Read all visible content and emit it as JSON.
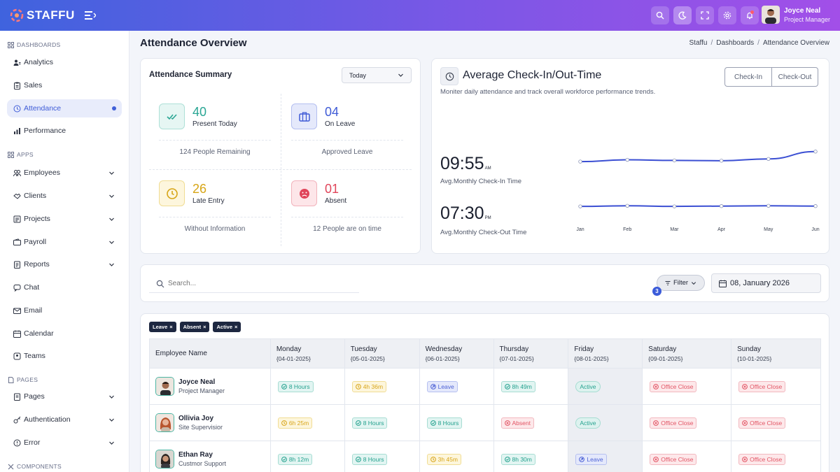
{
  "brand": {
    "name": "STAFFU"
  },
  "user": {
    "name": "Joyce Neal",
    "role": "Project Manager"
  },
  "sidebar": {
    "sections": [
      {
        "title": "DASHBOARDS"
      },
      {
        "title": "APPS"
      },
      {
        "title": "PAGES"
      },
      {
        "title": "COMPONENTS"
      }
    ],
    "items": [
      {
        "label": "Analytics"
      },
      {
        "label": "Sales"
      },
      {
        "label": "Attendance"
      },
      {
        "label": "Performance"
      },
      {
        "label": "Employees"
      },
      {
        "label": "Clients"
      },
      {
        "label": "Projects"
      },
      {
        "label": "Payroll"
      },
      {
        "label": "Reports"
      },
      {
        "label": "Chat"
      },
      {
        "label": "Email"
      },
      {
        "label": "Calendar"
      },
      {
        "label": "Teams"
      },
      {
        "label": "Pages"
      },
      {
        "label": "Authentication"
      },
      {
        "label": "Error"
      }
    ]
  },
  "header": {
    "title": "Attendance Overview",
    "breadcrumb": [
      "Staffu",
      "Dashboards",
      "Attendance Overview"
    ]
  },
  "summary": {
    "title": "Attendance Summary",
    "period": "Today",
    "stats": [
      {
        "value": "40",
        "label": "Present Today",
        "foot": "124 People Remaining",
        "color": "#2aa694"
      },
      {
        "value": "04",
        "label": "On Leave",
        "foot": "Approved Leave",
        "color": "#3f5bd6"
      },
      {
        "value": "26",
        "label": "Late Entry",
        "foot": "Without Information",
        "color": "#d7a516"
      },
      {
        "value": "01",
        "label": "Absent",
        "foot": "12 People are on time",
        "color": "#e0455a"
      }
    ]
  },
  "checkin": {
    "title": "Average Check-In/Out-Time",
    "subtitle": "Moniter daily attendance and track overall workforce performance trends.",
    "tabs": [
      "Check-In",
      "Check-Out"
    ],
    "checkin_time": "09:55",
    "checkin_suffix": "AM",
    "checkin_label": "Avg.Monthly Check-In Time",
    "checkout_time": "07:30",
    "checkout_suffix": "PM",
    "checkout_label": "Avg.Monthly Check-Out Time"
  },
  "chart_data": {
    "type": "line",
    "categories": [
      "Jan",
      "Feb",
      "Mar",
      "Apr",
      "May",
      "Jun"
    ],
    "series": [
      {
        "values": [
          9.6,
          9.9,
          9.8,
          9.75,
          10.05,
          11.3
        ]
      },
      {
        "values": [
          2.0,
          2.1,
          2.0,
          2.05,
          2.1,
          2.05
        ]
      }
    ],
    "ylim": [
      0,
      14
    ],
    "grid": false,
    "line_color": "#3b4fd3"
  },
  "search": {
    "placeholder": "Search..."
  },
  "filter": {
    "label": "Filter",
    "count": "3"
  },
  "date": "08, January 2026",
  "tags": [
    "Leave",
    "Absent",
    "Active"
  ],
  "table": {
    "headers": [
      {
        "day": "Employee Name",
        "date": ""
      },
      {
        "day": "Monday",
        "date": "{04-01-2025}"
      },
      {
        "day": "Tuesday",
        "date": "{05-01-2025}"
      },
      {
        "day": "Wednesday",
        "date": "{06-01-2025}"
      },
      {
        "day": "Thursday",
        "date": "{07-01-2025}"
      },
      {
        "day": "Friday",
        "date": "{08-01-2025}"
      },
      {
        "day": "Saturday",
        "date": "{09-01-2025}"
      },
      {
        "day": "Sunday",
        "date": "{10-01-2025}"
      }
    ],
    "rows": [
      {
        "name": "Joyce Neal",
        "role": "Project Manager",
        "cells": [
          {
            "text": "8 Hours",
            "kind": "teal"
          },
          {
            "text": "4h 36m",
            "kind": "yellow"
          },
          {
            "text": "Leave",
            "kind": "blue"
          },
          {
            "text": "8h 49m",
            "kind": "teal"
          },
          {
            "text": "Active",
            "kind": "active"
          },
          {
            "text": "Office Close",
            "kind": "red"
          },
          {
            "text": "Office Close",
            "kind": "red"
          }
        ]
      },
      {
        "name": "Ollivia Joy",
        "role": "Site Supervisior",
        "cells": [
          {
            "text": "6h 25m",
            "kind": "yellow"
          },
          {
            "text": "8 Hours",
            "kind": "teal"
          },
          {
            "text": "8 Hours",
            "kind": "teal"
          },
          {
            "text": "Absent",
            "kind": "red"
          },
          {
            "text": "Active",
            "kind": "active"
          },
          {
            "text": "Office Close",
            "kind": "red"
          },
          {
            "text": "Office Close",
            "kind": "red"
          }
        ]
      },
      {
        "name": "Ethan Ray",
        "role": "Custmor Support",
        "cells": [
          {
            "text": "8h 12m",
            "kind": "teal"
          },
          {
            "text": "8 Hours",
            "kind": "teal"
          },
          {
            "text": "3h 45m",
            "kind": "yellow"
          },
          {
            "text": "8h 30m",
            "kind": "teal"
          },
          {
            "text": "Leave",
            "kind": "blue"
          },
          {
            "text": "Office Close",
            "kind": "red"
          },
          {
            "text": "Office Close",
            "kind": "red"
          }
        ]
      }
    ]
  }
}
